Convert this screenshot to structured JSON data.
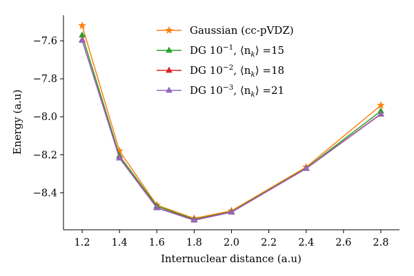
{
  "chart_data": {
    "type": "line",
    "title": "",
    "xlabel": "Internuclear distance (a.u)",
    "ylabel": "Energy (a.u)",
    "xlim": [
      1.1,
      2.9
    ],
    "ylim": [
      -8.595,
      -7.465
    ],
    "x_ticks": [
      1.2,
      1.4,
      1.6,
      1.8,
      2.0,
      2.2,
      2.4,
      2.6,
      2.8
    ],
    "x_tick_labels": [
      "1.2",
      "1.4",
      "1.6",
      "1.8",
      "2.0",
      "2.2",
      "2.4",
      "2.6",
      "2.8"
    ],
    "y_ticks": [
      -7.6,
      -7.8,
      -8.0,
      -8.2,
      -8.4
    ],
    "y_tick_labels": [
      "−7.6",
      "−7.8",
      "−8.0",
      "−8.2",
      "−8.4"
    ],
    "grid": false,
    "legend_position": "top-right",
    "x": [
      1.2,
      1.4,
      1.6,
      1.8,
      2.0,
      2.4,
      2.8
    ],
    "series": [
      {
        "name": "Gaussian (cc-pVDZ)",
        "legend": {
          "base": "Gaussian (cc-pVDZ)",
          "sup": "",
          "mid": "",
          "sub": "",
          "tail": ""
        },
        "color": "#ff7f0e",
        "marker": "star",
        "values": [
          -7.52,
          -8.18,
          -8.465,
          -8.535,
          -8.495,
          -8.265,
          -7.94
        ]
      },
      {
        "name": "DG 10⁻¹, ⟨n_k⟩ =15",
        "legend": {
          "base": "DG 10",
          "sup": "−1",
          "mid": ", ⟨n",
          "sub": "k",
          "tail": "⟩ =15"
        },
        "color": "#2ca02c",
        "marker": "triangle",
        "values": [
          -7.57,
          -8.205,
          -8.47,
          -8.54,
          -8.5,
          -8.27,
          -7.97
        ]
      },
      {
        "name": "DG 10⁻², ⟨n_k⟩ =18",
        "legend": {
          "base": "DG 10",
          "sup": "−2",
          "mid": ", ⟨n",
          "sub": "k",
          "tail": "⟩ =18"
        },
        "color": "#d62728",
        "marker": "triangle",
        "values": [
          -7.595,
          -8.215,
          -8.478,
          -8.543,
          -8.502,
          -8.272,
          -7.985
        ]
      },
      {
        "name": "DG 10⁻³, ⟨n_k⟩ =21",
        "legend": {
          "base": "DG 10",
          "sup": "−3",
          "mid": ", ⟨n",
          "sub": "k",
          "tail": "⟩ =21"
        },
        "color": "#9467bd",
        "marker": "triangle",
        "values": [
          -7.598,
          -8.218,
          -8.48,
          -8.545,
          -8.503,
          -8.273,
          -7.987
        ]
      }
    ]
  }
}
